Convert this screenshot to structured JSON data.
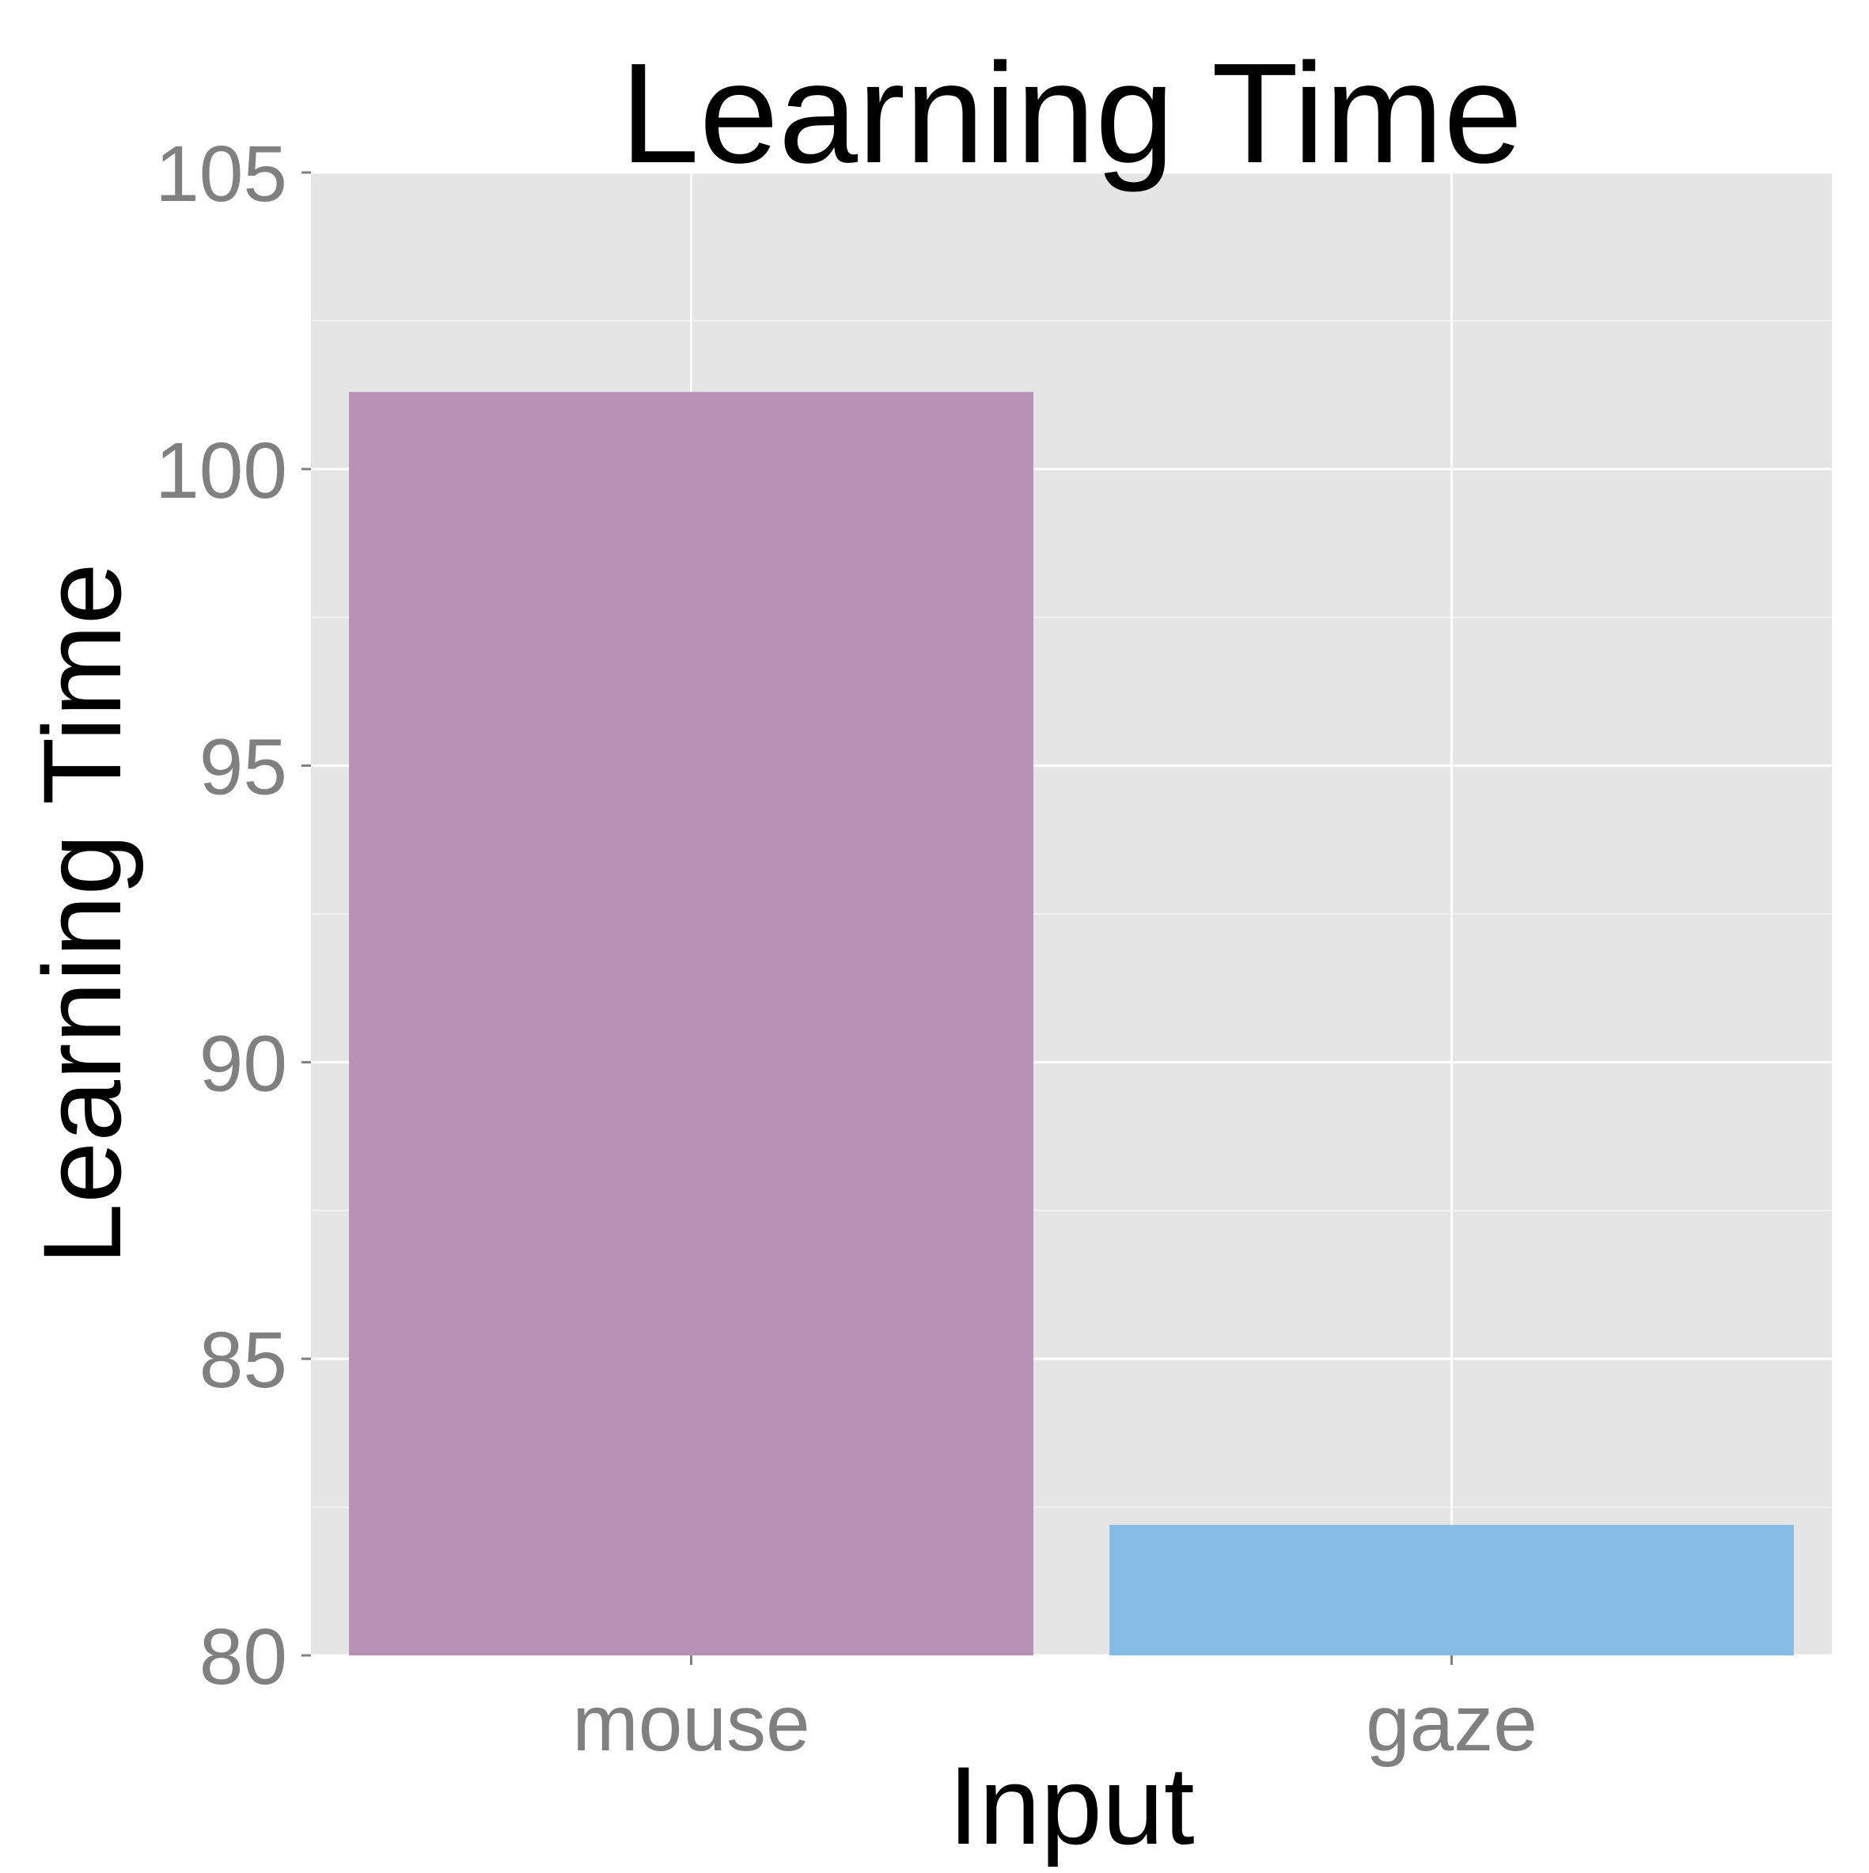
{
  "chart_data": {
    "type": "bar",
    "title": "Learning Time",
    "xlabel": "Input",
    "ylabel": "Learning Time",
    "categories": [
      "mouse",
      "gaze"
    ],
    "values": [
      101.3,
      82.2
    ],
    "colors": [
      "#b592b6",
      "#86bbe4"
    ],
    "ylim": [
      80,
      105
    ],
    "yticks": [
      80,
      85,
      90,
      95,
      100,
      105
    ],
    "ytick_labels": [
      "80",
      "85",
      "90",
      "95",
      "100",
      "105"
    ],
    "grid": true,
    "legend": "none",
    "panel_background": "#e5e5e5",
    "grid_color": "#ffffff"
  }
}
